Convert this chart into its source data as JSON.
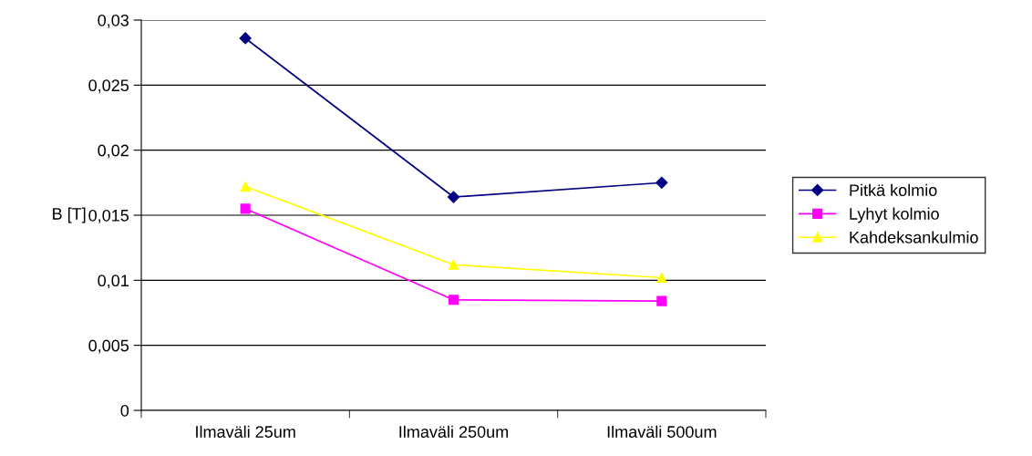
{
  "chart_data": {
    "type": "line",
    "ylabel": "B [T]",
    "categories": [
      "Ilmaväli 25um",
      "Ilmaväli 250um",
      "Ilmaväli 500um"
    ],
    "series": [
      {
        "name": "Pitkä kolmio",
        "color": "#000080",
        "marker": "diamond",
        "values": [
          0.0286,
          0.0164,
          0.0175
        ]
      },
      {
        "name": "Lyhyt kolmio",
        "color": "#ff00ff",
        "marker": "square",
        "values": [
          0.0155,
          0.0085,
          0.0084
        ]
      },
      {
        "name": "Kahdeksankulmio",
        "color": "#ffff00",
        "marker": "triangle",
        "values": [
          0.0172,
          0.0112,
          0.0102
        ]
      }
    ],
    "ylim": [
      0,
      0.03
    ],
    "yticks": [
      {
        "value": 0,
        "label": "0"
      },
      {
        "value": 0.005,
        "label": "0,005"
      },
      {
        "value": 0.01,
        "label": "0,01"
      },
      {
        "value": 0.015,
        "label": "0,015"
      },
      {
        "value": 0.02,
        "label": "0,02"
      },
      {
        "value": 0.025,
        "label": "0,025"
      },
      {
        "value": 0.03,
        "label": "0,03"
      }
    ],
    "grid": "y",
    "legend": "right"
  }
}
